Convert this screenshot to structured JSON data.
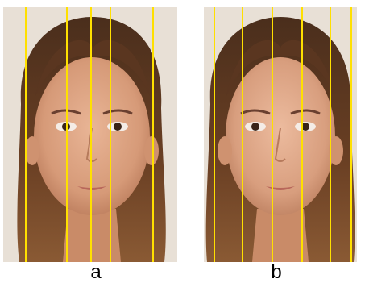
{
  "panels": [
    {
      "id": "a",
      "caption": "a",
      "line_color": "#ffe000",
      "guide_line_count": 5,
      "depicts": "frontal-face-photo"
    },
    {
      "id": "b",
      "caption": "b",
      "line_color": "#ffe000",
      "guide_line_count": 6,
      "depicts": "frontal-face-photo"
    }
  ]
}
